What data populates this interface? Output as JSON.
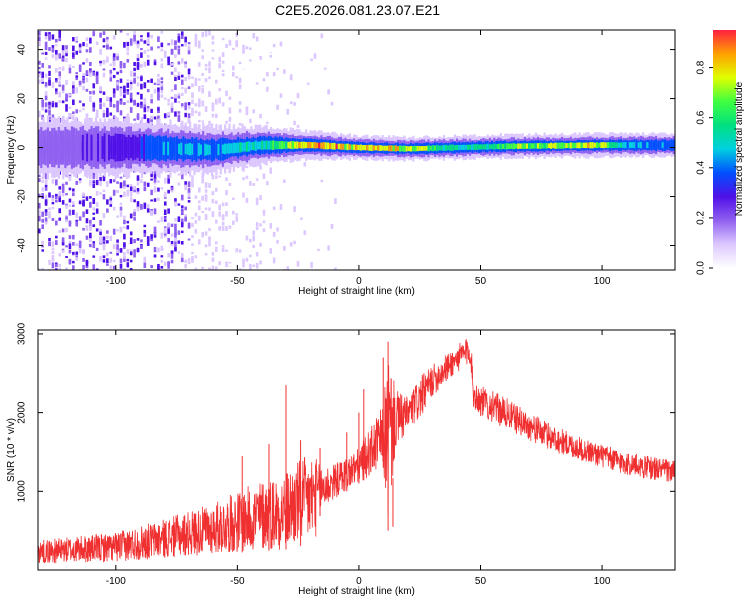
{
  "title": "C2E5.2026.081.23.07.E21",
  "colors": {
    "snr_line": "#f03030",
    "axis": "#000000",
    "background": "#ffffff"
  },
  "colormap": [
    "#ffffff",
    "#dcc8ff",
    "#9060f0",
    "#5010e8",
    "#0050ff",
    "#00d0e0",
    "#00e080",
    "#40ff40",
    "#e0ff00",
    "#ffa000",
    "#ff2040"
  ],
  "chart_data": [
    {
      "type": "heatmap",
      "xlabel": "Height of straight line (km)",
      "ylabel": "Frequency (Hz)",
      "xlim": [
        -132,
        130
      ],
      "ylim": [
        -50,
        48
      ],
      "xticks": [
        -100,
        -50,
        0,
        50,
        100
      ],
      "xtick_labels": [
        "-100",
        "-50",
        "0",
        "50",
        "100"
      ],
      "yticks": [
        -40,
        -20,
        0,
        20,
        40
      ],
      "ytick_labels": [
        "-40",
        "-20",
        "0",
        "20",
        "40"
      ],
      "colorbar": {
        "label": "Normalized spectral amplitude",
        "range": [
          0,
          0.95
        ],
        "ticks": [
          0.0,
          0.2,
          0.4,
          0.6,
          0.8
        ],
        "tick_labels": [
          "0.0",
          "0.2",
          "0.4",
          "0.6",
          "0.8"
        ]
      },
      "band": {
        "center_hz": [
          [
            -130,
            0
          ],
          [
            -90,
            0
          ],
          [
            -60,
            -1
          ],
          [
            -40,
            1
          ],
          [
            -20,
            1
          ],
          [
            0,
            0
          ],
          [
            20,
            -0.5
          ],
          [
            60,
            0.5
          ],
          [
            100,
            1
          ],
          [
            130,
            1
          ]
        ],
        "peak_amplitude": [
          [
            -130,
            0.22
          ],
          [
            -95,
            0.3
          ],
          [
            -85,
            0.45
          ],
          [
            -60,
            0.5
          ],
          [
            -40,
            0.6
          ],
          [
            -20,
            0.92
          ],
          [
            0,
            0.9
          ],
          [
            20,
            0.9
          ],
          [
            40,
            0.55
          ],
          [
            65,
            0.75
          ],
          [
            85,
            0.8
          ],
          [
            95,
            0.92
          ],
          [
            110,
            0.5
          ],
          [
            130,
            0.45
          ]
        ],
        "half_width_hz": [
          [
            -130,
            6
          ],
          [
            -100,
            6
          ],
          [
            -60,
            5
          ],
          [
            -40,
            4
          ],
          [
            -20,
            3
          ],
          [
            0,
            2.5
          ],
          [
            50,
            2.5
          ],
          [
            130,
            2.5
          ]
        ]
      },
      "scatter_noise": {
        "dense_until_km": -70,
        "sparse_until_km": -10
      }
    },
    {
      "type": "line",
      "xlabel": "Height of straight line (km)",
      "ylabel": "SNR (10 * v/v)",
      "xlim": [
        -132,
        130
      ],
      "ylim": [
        0,
        3050
      ],
      "xticks": [
        -100,
        -50,
        0,
        50,
        100
      ],
      "xtick_labels": [
        "-100",
        "-50",
        "0",
        "50",
        "100"
      ],
      "yticks": [
        1000,
        2000,
        3000
      ],
      "ytick_labels": [
        "1000",
        "2000",
        "3000"
      ],
      "series": [
        {
          "color": "#f03030",
          "envelope": [
            [
              -132,
              80,
              380
            ],
            [
              -100,
              100,
              480
            ],
            [
              -80,
              150,
              650
            ],
            [
              -60,
              200,
              850
            ],
            [
              -50,
              220,
              1000
            ],
            [
              -40,
              240,
              1150
            ],
            [
              -30,
              260,
              1250
            ],
            [
              -25,
              300,
              1400
            ],
            [
              -18,
              350,
              1500
            ],
            [
              -17,
              650,
              1350
            ],
            [
              -10,
              900,
              1350
            ],
            [
              0,
              1100,
              1550
            ],
            [
              10,
              1300,
              2100
            ],
            [
              12,
              500,
              2850
            ],
            [
              15,
              1500,
              2300
            ],
            [
              20,
              1750,
              2200
            ],
            [
              25,
              1900,
              2450
            ],
            [
              30,
              2200,
              2600
            ],
            [
              40,
              2500,
              2850
            ],
            [
              46,
              2600,
              3000
            ],
            [
              47,
              2050,
              2450
            ],
            [
              50,
              1950,
              2350
            ],
            [
              60,
              1800,
              2200
            ],
            [
              70,
              1650,
              2000
            ],
            [
              80,
              1500,
              1850
            ],
            [
              90,
              1400,
              1700
            ],
            [
              100,
              1300,
              1600
            ],
            [
              110,
              1200,
              1500
            ],
            [
              120,
              1150,
              1450
            ],
            [
              130,
              1100,
              1400
            ]
          ],
          "spikes": [
            [
              -48,
              1450
            ],
            [
              -37,
              1600
            ],
            [
              -30,
              2350
            ],
            [
              -24,
              1650
            ],
            [
              -16,
              1550
            ],
            [
              -5,
              1750
            ],
            [
              0,
              2000
            ],
            [
              2,
              2300
            ],
            [
              10,
              2700
            ],
            [
              12,
              2900
            ],
            [
              14,
              550
            ]
          ]
        }
      ]
    }
  ]
}
